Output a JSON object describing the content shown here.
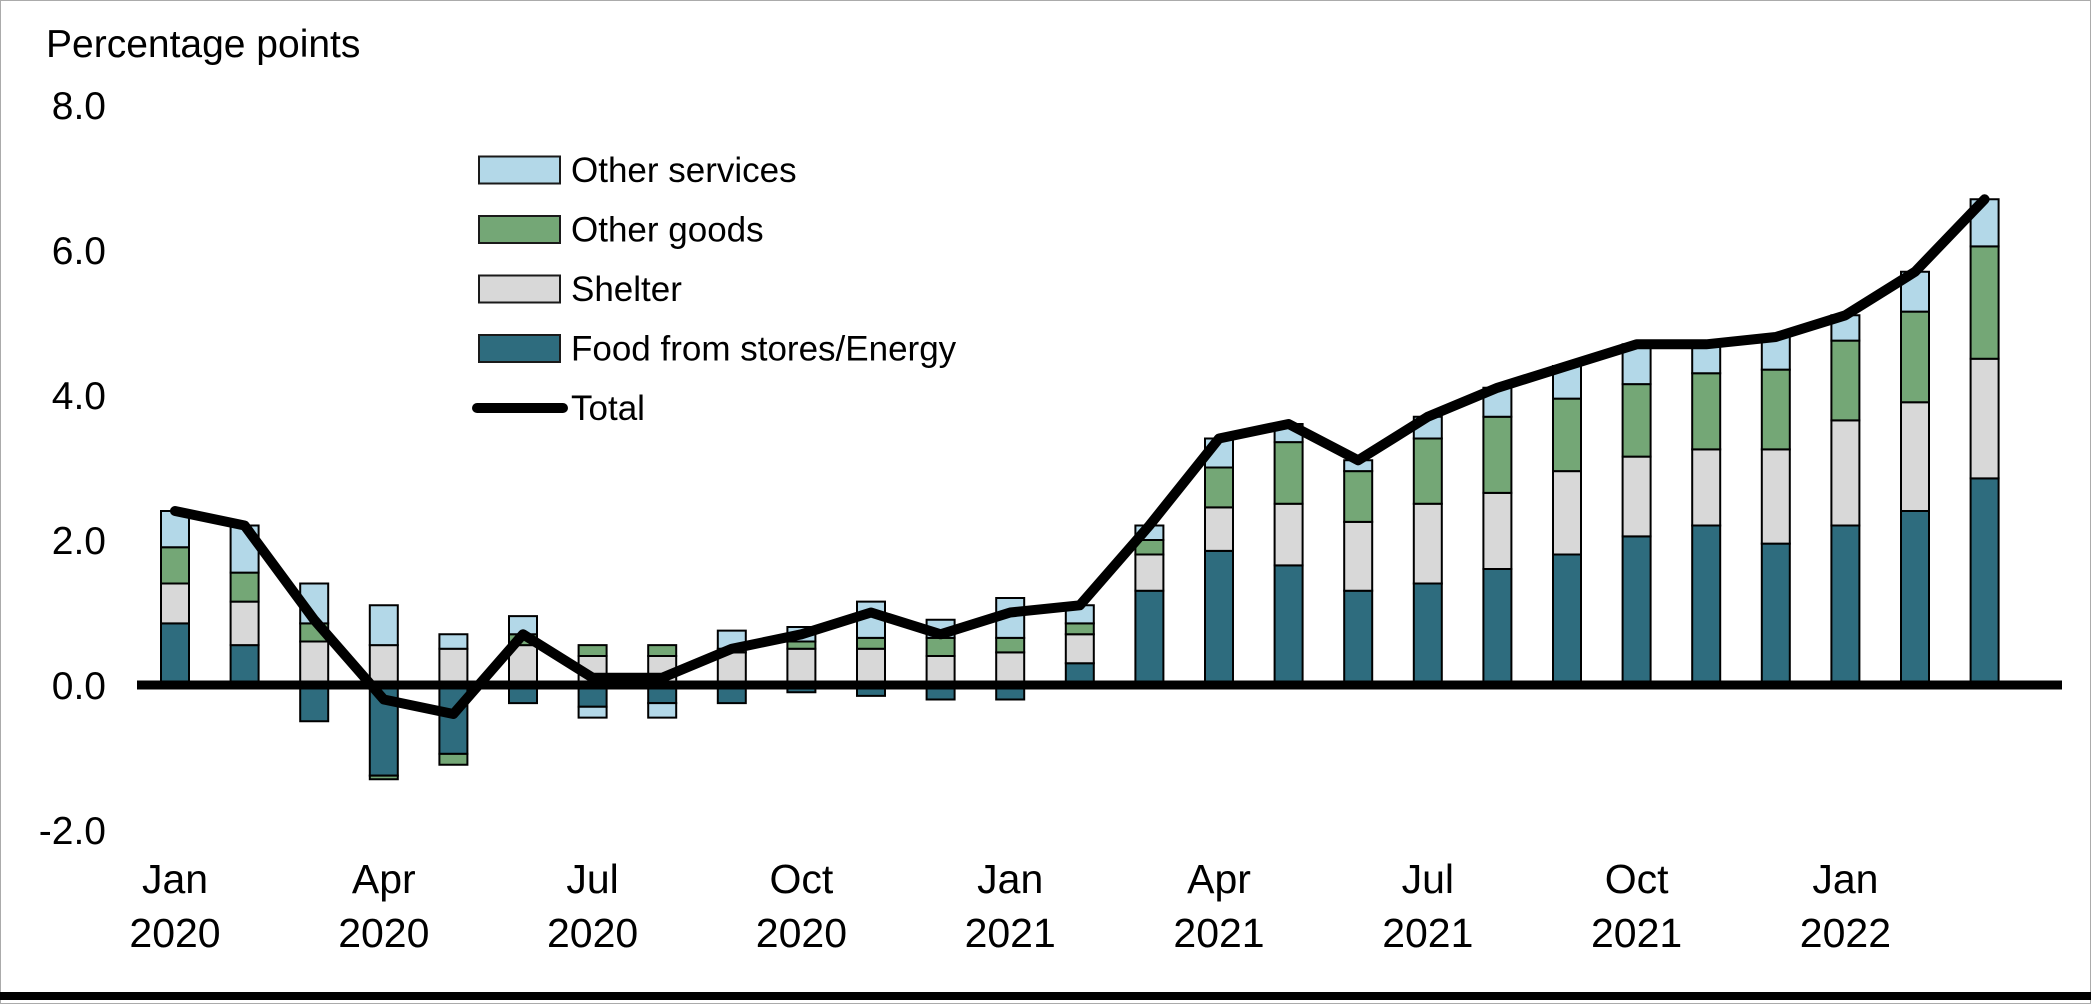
{
  "title": "Percentage points",
  "colors": {
    "background": "#FFFFFF",
    "text": "#000000",
    "bar_border": "#000000",
    "zero_line": "#000000",
    "bottom_rule": "#000000",
    "frame_border": "#ABABAB",
    "other_services": "#B3D8E8",
    "other_goods": "#74A776",
    "shelter": "#D8D8D8",
    "food_energy": "#2E6C7E",
    "total_line": "#000000"
  },
  "legend": {
    "entries": [
      {
        "label": "Other services",
        "swatch": "rect",
        "color": "#B3D8E8"
      },
      {
        "label": "Other goods",
        "swatch": "rect",
        "color": "#74A776"
      },
      {
        "label": "Shelter",
        "swatch": "rect",
        "color": "#D8D8D8"
      },
      {
        "label": "Food from stores/Energy",
        "swatch": "rect",
        "color": "#2E6C7E"
      },
      {
        "label": "Total",
        "swatch": "line",
        "color": "#000000"
      }
    ]
  },
  "chart_data": {
    "type": "bar",
    "subtype": "stacked-bars-with-total-line",
    "title": "Percentage points",
    "xlabel": "",
    "ylabel": "Percentage points",
    "ylim": [
      -2.0,
      8.0
    ],
    "grid": false,
    "legend_position": "upper-left-inside",
    "y_ticks": [
      {
        "value": 8,
        "label": "8.0"
      },
      {
        "value": 6,
        "label": "6.0"
      },
      {
        "value": 4,
        "label": "4.0"
      },
      {
        "value": 2,
        "label": "2.0"
      },
      {
        "value": 0,
        "label": "0.0"
      },
      {
        "value": -2,
        "label": "-2.0"
      }
    ],
    "x_tick_indices": [
      0,
      3,
      6,
      9,
      12,
      15,
      18,
      21,
      24
    ],
    "categories": [
      "Jan 2020",
      "Feb 2020",
      "Mar 2020",
      "Apr 2020",
      "May 2020",
      "Jun 2020",
      "Jul 2020",
      "Aug 2020",
      "Sep 2020",
      "Oct 2020",
      "Nov 2020",
      "Dec 2020",
      "Jan 2021",
      "Feb 2021",
      "Mar 2021",
      "Apr 2021",
      "May 2021",
      "Jun 2021",
      "Jul 2021",
      "Aug 2021",
      "Sep 2021",
      "Oct 2021",
      "Nov 2021",
      "Dec 2021",
      "Jan 2022",
      "Feb 2022",
      "Mar 2022"
    ],
    "stack_order_bottom_to_top": [
      "Food from stores/Energy",
      "Shelter",
      "Other goods",
      "Other services"
    ],
    "series": [
      {
        "name": "Food from stores/Energy",
        "color": "#2E6C7E",
        "values": [
          0.85,
          0.55,
          -0.5,
          -1.25,
          -0.95,
          -0.25,
          -0.3,
          -0.25,
          -0.25,
          -0.1,
          -0.15,
          -0.2,
          -0.2,
          0.3,
          1.3,
          1.85,
          1.65,
          1.3,
          1.4,
          1.6,
          1.8,
          2.05,
          2.2,
          1.95,
          2.2,
          2.4,
          2.85
        ]
      },
      {
        "name": "Shelter",
        "color": "#D8D8D8",
        "values": [
          0.55,
          0.6,
          0.6,
          0.55,
          0.5,
          0.55,
          0.4,
          0.4,
          0.45,
          0.5,
          0.5,
          0.4,
          0.45,
          0.4,
          0.5,
          0.6,
          0.85,
          0.95,
          1.1,
          1.05,
          1.15,
          1.1,
          1.05,
          1.3,
          1.45,
          1.5,
          1.65
        ]
      },
      {
        "name": "Other goods",
        "color": "#74A776",
        "values": [
          0.5,
          0.4,
          0.25,
          -0.05,
          -0.15,
          0.15,
          0.15,
          0.15,
          0.05,
          0.1,
          0.15,
          0.25,
          0.2,
          0.15,
          0.2,
          0.55,
          0.85,
          0.7,
          0.9,
          1.05,
          1.0,
          1.0,
          1.05,
          1.1,
          1.1,
          1.25,
          1.55
        ]
      },
      {
        "name": "Other services",
        "color": "#B3D8E8",
        "values": [
          0.5,
          0.65,
          0.55,
          0.55,
          0.2,
          0.25,
          -0.15,
          -0.2,
          0.25,
          0.2,
          0.5,
          0.25,
          0.55,
          0.25,
          0.2,
          0.4,
          0.25,
          0.15,
          0.3,
          0.4,
          0.45,
          0.55,
          0.4,
          0.45,
          0.35,
          0.55,
          0.65
        ]
      }
    ],
    "line": {
      "name": "Total",
      "color": "#000000",
      "values": [
        2.4,
        2.2,
        0.9,
        -0.2,
        -0.4,
        0.7,
        0.1,
        0.1,
        0.5,
        0.7,
        1.0,
        0.7,
        1.0,
        1.1,
        2.2,
        3.4,
        3.6,
        3.1,
        3.7,
        4.1,
        4.4,
        4.7,
        4.7,
        4.8,
        5.1,
        5.7,
        6.7
      ]
    }
  }
}
